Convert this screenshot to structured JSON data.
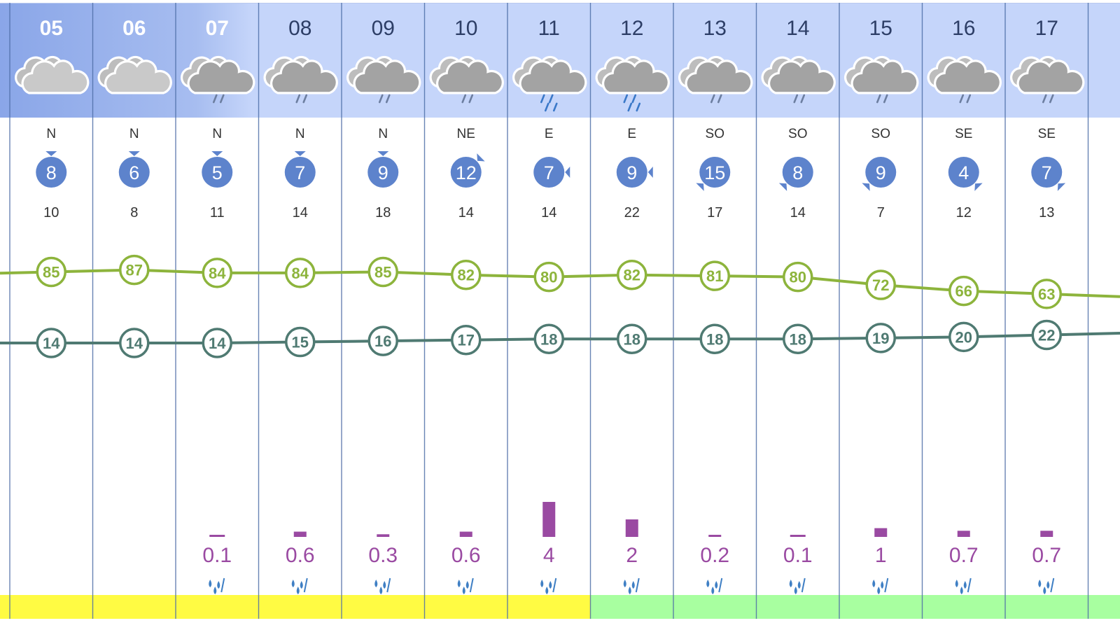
{
  "chart_data": {
    "type": "line",
    "title": "",
    "xlabel": "",
    "ylabel": "",
    "categories": [
      "05",
      "06",
      "07",
      "08",
      "09",
      "10",
      "11",
      "12",
      "13",
      "14",
      "15",
      "16",
      "17"
    ],
    "sky": [
      "cloudy",
      "cloudy",
      "cloudy-light-rain",
      "cloudy-light-rain",
      "cloudy-light-rain",
      "cloudy-light-rain",
      "cloudy-rain",
      "cloudy-rain",
      "cloudy-light-rain",
      "cloudy-light-rain",
      "cloudy-light-rain",
      "cloudy-light-rain",
      "cloudy-light-rain"
    ],
    "wind": {
      "direction": [
        "N",
        "N",
        "N",
        "N",
        "N",
        "NE",
        "E",
        "E",
        "SO",
        "SO",
        "SO",
        "SE",
        "SE"
      ],
      "speed": [
        "8",
        "6",
        "5",
        "7",
        "9",
        "12",
        "7",
        "9",
        "15",
        "8",
        "9",
        "4",
        "7"
      ],
      "gust": [
        "10",
        "8",
        "11",
        "14",
        "18",
        "14",
        "14",
        "22",
        "17",
        "14",
        "7",
        "12",
        "13"
      ]
    },
    "series": [
      {
        "values": [
          85,
          87,
          84,
          84,
          85,
          82,
          80,
          82,
          81,
          80,
          72,
          66,
          63
        ],
        "color": "#8db43c"
      },
      {
        "values": [
          14,
          14,
          14,
          15,
          16,
          17,
          18,
          18,
          18,
          18,
          19,
          20,
          22
        ],
        "color": "#4f7a72"
      }
    ],
    "precipitation": {
      "values": [
        null,
        null,
        0.1,
        0.6,
        0.3,
        0.6,
        4,
        2,
        0.2,
        0.1,
        1,
        0.7,
        0.7
      ],
      "labels": [
        "",
        "",
        "0.1",
        "0.6",
        "0.3",
        "0.6",
        "4",
        "2",
        "0.2",
        "0.1",
        "1",
        "0.7",
        "0.7"
      ],
      "color": "#9a4aa2"
    },
    "bottom_band": [
      "#fffb43",
      "#fffb43",
      "#fffb43",
      "#fffb43",
      "#fffb43",
      "#fffb43",
      "#fffb43",
      "#a8ffa0",
      "#a8ffa0",
      "#a8ffa0",
      "#a8ffa0",
      "#a8ffa0",
      "#a8ffa0"
    ],
    "colors": {
      "header_bg": "#c5d5fa",
      "header_bg_dark": "#8aa6e8",
      "wind_badge": "#5d83cc",
      "grid_line": "#4f6fa8"
    }
  }
}
